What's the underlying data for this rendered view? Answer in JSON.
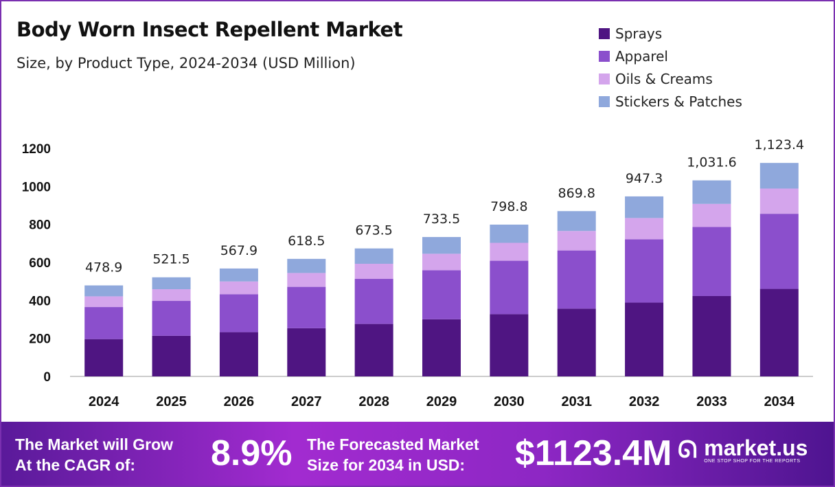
{
  "chart_data": {
    "type": "bar",
    "stacked": true,
    "title": "Body Worn Insect Repellent Market",
    "subtitle": "Size, by Product Type, 2024-2034 (USD Million)",
    "categories": [
      "2024",
      "2025",
      "2026",
      "2027",
      "2028",
      "2029",
      "2030",
      "2031",
      "2032",
      "2033",
      "2034"
    ],
    "series": [
      {
        "name": "Sprays",
        "color": "#4f1582",
        "values": [
          196.3,
          213.8,
          232.8,
          253.6,
          276.1,
          300.7,
          327.5,
          356.6,
          388.4,
          423.0,
          460.6
        ]
      },
      {
        "name": "Apparel",
        "color": "#8b4fcc",
        "values": [
          168.6,
          183.6,
          199.9,
          217.7,
          237.1,
          258.2,
          281.2,
          306.2,
          333.4,
          363.1,
          395.4
        ]
      },
      {
        "name": "Oils & Creams",
        "color": "#d4a5ec",
        "values": [
          56.5,
          61.5,
          67.0,
          73.0,
          79.5,
          86.6,
          94.3,
          102.6,
          111.8,
          121.7,
          132.6
        ]
      },
      {
        "name": "Stickers & Patches",
        "color": "#8fa8dc",
        "values": [
          57.5,
          62.6,
          68.2,
          74.2,
          80.8,
          88.0,
          95.8,
          104.4,
          113.7,
          123.8,
          134.8
        ]
      }
    ],
    "totals_labels": [
      "478.9",
      "521.5",
      "567.9",
      "618.5",
      "673.5",
      "733.5",
      "798.8",
      "869.8",
      "947.3",
      "1,031.6",
      "1,123.4"
    ],
    "totals": [
      478.9,
      521.5,
      567.9,
      618.5,
      673.5,
      733.5,
      798.8,
      869.8,
      947.3,
      1031.6,
      1123.4
    ],
    "yticks": [
      0,
      200,
      400,
      600,
      800,
      1000,
      1200
    ],
    "ylim": [
      0,
      1200
    ],
    "grid": false,
    "legend_position": "top-right"
  },
  "footer": {
    "cagr_text_1": "The Market will Grow",
    "cagr_text_2": "At the CAGR of:",
    "cagr_value": "8.9%",
    "forecast_text_1": "The Forecasted Market",
    "forecast_text_2": "Size for 2034 in USD:",
    "forecast_value": "$1123.4M",
    "brand": "market.us",
    "brand_tagline": "ONE STOP SHOP FOR THE REPORTS"
  }
}
